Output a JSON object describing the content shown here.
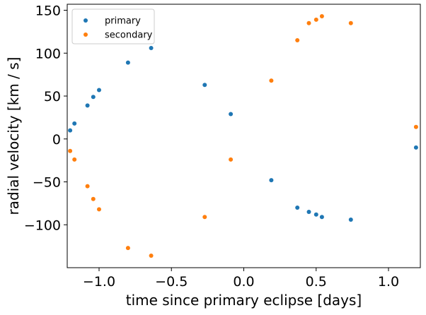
{
  "chart_data": {
    "type": "scatter",
    "title": "",
    "xlabel": "time since primary eclipse [days]",
    "ylabel": "radial velocity [km / s]",
    "xlim": [
      -1.22,
      1.22
    ],
    "ylim": [
      -150,
      157
    ],
    "xticks": [
      -1.0,
      -0.5,
      0.0,
      0.5,
      1.0
    ],
    "xtick_labels": [
      "−1.0",
      "−0.5",
      "0.0",
      "0.5",
      "1.0"
    ],
    "yticks": [
      -100,
      -50,
      0,
      50,
      100,
      150
    ],
    "ytick_labels": [
      "−100",
      "−50",
      "0",
      "50",
      "100",
      "150"
    ],
    "grid": false,
    "legend_position": "top-left",
    "series": [
      {
        "name": "primary",
        "color": "#1f77b4",
        "x": [
          -1.2,
          -1.17,
          -1.08,
          -1.04,
          -1.0,
          -0.8,
          -0.64,
          -0.27,
          -0.09,
          0.19,
          0.37,
          0.45,
          0.5,
          0.54,
          0.74,
          1.19
        ],
        "y": [
          10,
          18,
          39,
          49,
          57,
          89,
          106,
          63,
          29,
          -48,
          -80,
          -85,
          -88,
          -91,
          -94,
          -10
        ]
      },
      {
        "name": "secondary",
        "color": "#ff7f0e",
        "x": [
          -1.2,
          -1.17,
          -1.08,
          -1.04,
          -1.0,
          -0.8,
          -0.64,
          -0.27,
          -0.09,
          0.19,
          0.37,
          0.45,
          0.5,
          0.54,
          0.74,
          1.19
        ],
        "y": [
          -14,
          -24,
          -55,
          -70,
          -82,
          -127,
          -136,
          -91,
          -24,
          68,
          115,
          135,
          139,
          143,
          135,
          14
        ]
      }
    ]
  }
}
